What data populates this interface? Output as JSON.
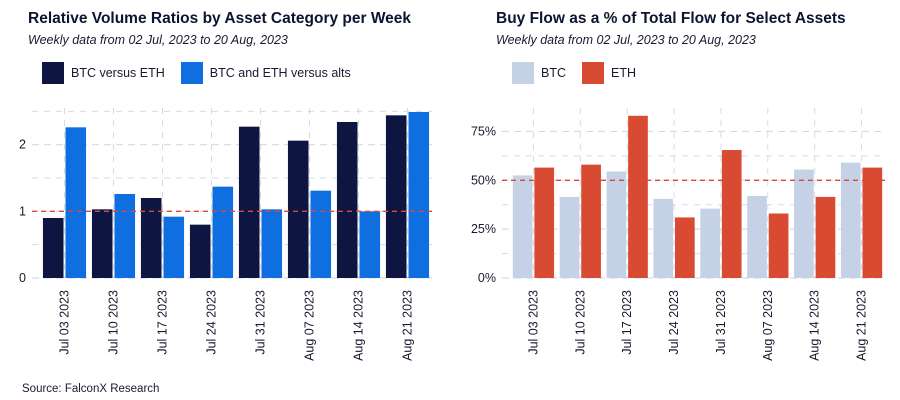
{
  "source": "Source: FalconX Research",
  "chart_data": [
    {
      "type": "bar",
      "title": "Relative Volume Ratios by Asset Category per Week",
      "subtitle": "Weekly data from 02 Jul, 2023 to 20 Aug, 2023",
      "categories": [
        "Jul 03 2023",
        "Jul 10 2023",
        "Jul 17 2023",
        "Jul 24 2023",
        "Jul 31 2023",
        "Aug 07 2023",
        "Aug 14 2023",
        "Aug 21 2023"
      ],
      "series": [
        {
          "name": "BTC versus ETH",
          "color": "#0d1540",
          "values": [
            0.9,
            1.03,
            1.2,
            0.8,
            2.27,
            2.06,
            2.34,
            2.44
          ]
        },
        {
          "name": "BTC and ETH versus alts",
          "color": "#0f6fe0",
          "values": [
            2.26,
            1.26,
            0.92,
            1.37,
            1.03,
            1.31,
            1.0,
            2.49
          ]
        }
      ],
      "ylim": [
        0,
        2.55
      ],
      "yticks": [
        0,
        1,
        2
      ],
      "ytick_labels": [
        "0",
        "1",
        "2"
      ],
      "reference_line": 1,
      "reference_color": "#d84b3a",
      "grid": true,
      "legend_position": "top-left"
    },
    {
      "type": "bar",
      "title": "Buy Flow as a % of Total Flow for Select Assets",
      "subtitle": "Weekly data from 02 Jul, 2023 to 20 Aug, 2023",
      "categories": [
        "Jul 03 2023",
        "Jul 10 2023",
        "Jul 17 2023",
        "Jul 24 2023",
        "Jul 31 2023",
        "Aug 07 2023",
        "Aug 14 2023",
        "Aug 21 2023"
      ],
      "series": [
        {
          "name": "BTC",
          "color": "#c5d2e6",
          "values": [
            52.5,
            41.5,
            54.5,
            40.5,
            35.5,
            42,
            55.5,
            59
          ]
        },
        {
          "name": "ETH",
          "color": "#d94a32",
          "values": [
            56.5,
            58,
            83,
            31,
            65.5,
            33,
            41.5,
            56.5
          ]
        }
      ],
      "ylim": [
        0,
        87
      ],
      "yticks": [
        0,
        25,
        50,
        75
      ],
      "ytick_labels": [
        "0%",
        "25%",
        "50%",
        "75%"
      ],
      "reference_line": 50,
      "reference_color": "#d84b3a",
      "grid": true,
      "legend_position": "top-left"
    }
  ]
}
